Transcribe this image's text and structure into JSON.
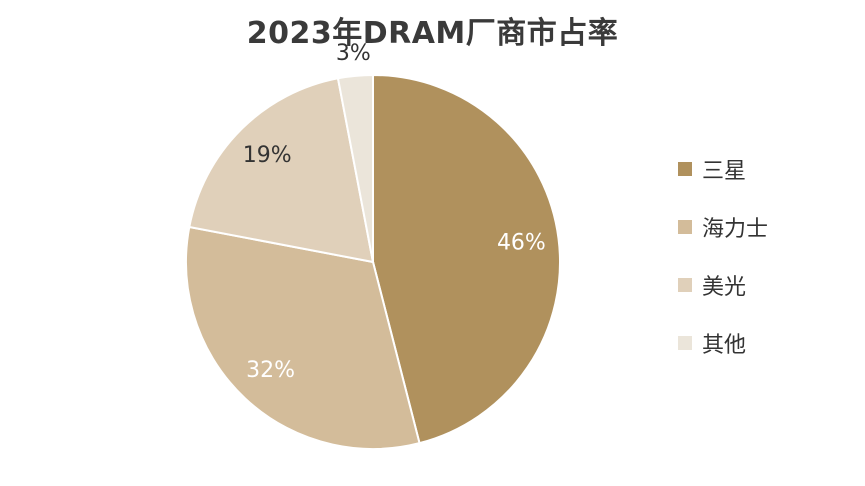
{
  "chart_data": {
    "type": "pie",
    "title": "2023年DRAM厂商市占率",
    "categories": [
      "三星",
      "海力士",
      "美光",
      "其他"
    ],
    "values": [
      46,
      32,
      19,
      3
    ],
    "labels": [
      "46%",
      "32%",
      "19%",
      "3%"
    ],
    "colors": [
      "#b0915d",
      "#d3bc9a",
      "#e0d0ba",
      "#ebe5da"
    ],
    "label_colors": [
      "#ffffff",
      "#ffffff",
      "#333333",
      "#333333"
    ],
    "legend_position": "right"
  }
}
